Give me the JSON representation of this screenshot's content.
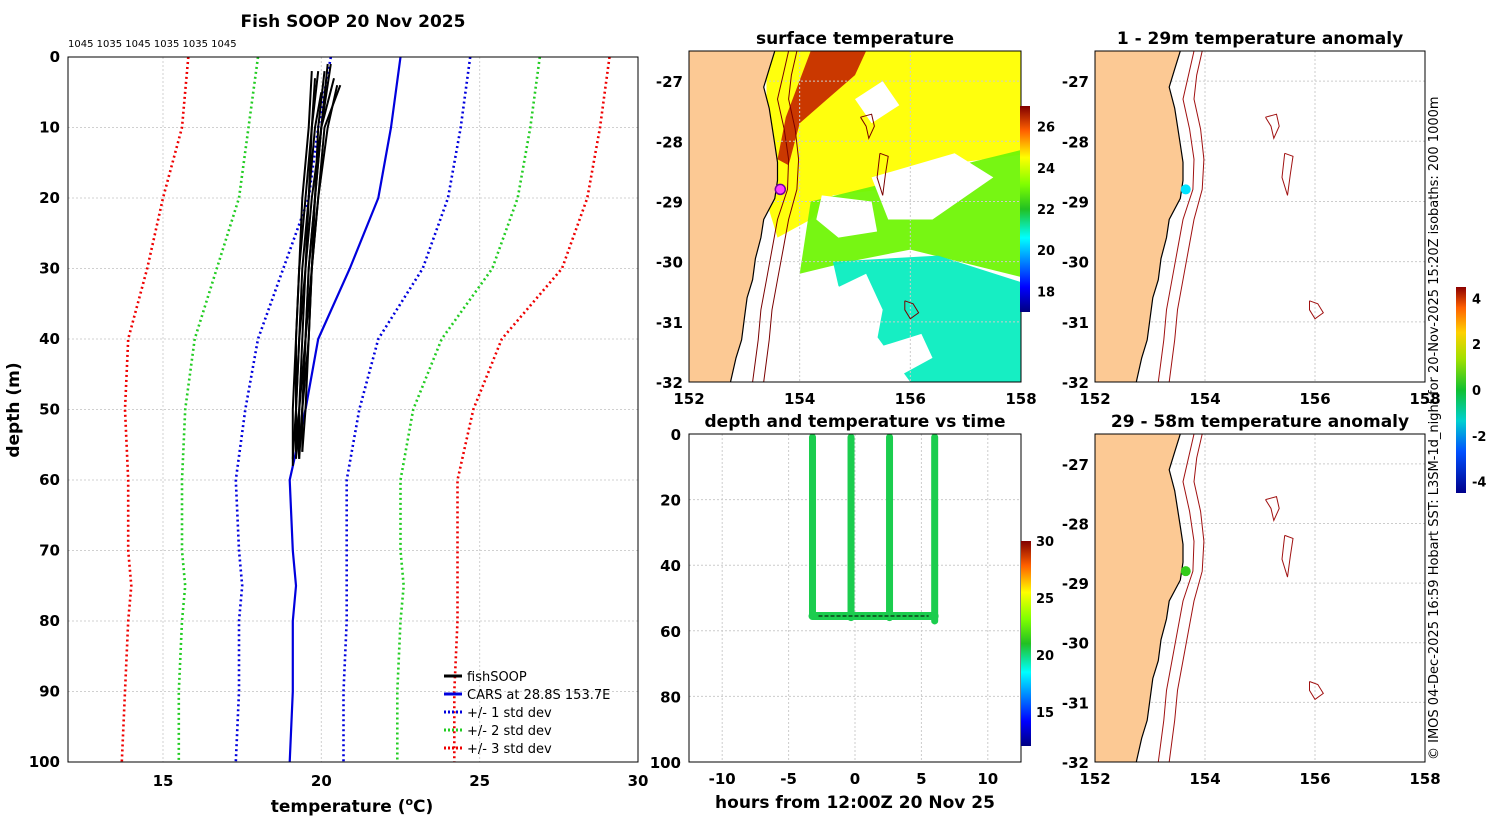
{
  "side_note": "© IMOS 04-Dec-2025 16:59 Hobart SST: L3SM-1d_night for 20-Nov-2025 15:20Z isobaths: 200  1000m",
  "chart_data": [
    {
      "id": "profile",
      "type": "line",
      "title": "Fish SOOP 20 Nov 2025",
      "xlabel_pre": "temperature (",
      "xlabel_sup": "o",
      "xlabel_post": "C)",
      "ylabel": "depth (m)",
      "xlim": [
        12,
        30
      ],
      "ylim": [
        0,
        100
      ],
      "xticks": [
        15,
        20,
        25,
        30
      ],
      "yticks": [
        0,
        10,
        20,
        30,
        40,
        50,
        60,
        70,
        80,
        90,
        100
      ],
      "grid": true,
      "top_labels": "1045 1035 1045 1035 1035 1045",
      "legend_position": "bottom-right",
      "legend": [
        {
          "label": "fishSOOP",
          "color": "#000000",
          "style": "solid"
        },
        {
          "label": "CARS at 28.8S 153.7E",
          "color": "#0000dd",
          "style": "solid"
        },
        {
          "label": "+/- 1 std dev",
          "color": "#0000dd",
          "style": "dotted"
        },
        {
          "label": "+/- 2 std dev",
          "color": "#22cc22",
          "style": "dotted"
        },
        {
          "label": "+/- 3 std dev",
          "color": "#ee0000",
          "style": "dotted"
        }
      ],
      "series": [
        {
          "name": "CARS at 28.8S 153.7E",
          "color": "#0000dd",
          "style": "solid",
          "temp": [
            22.5,
            22.2,
            21.8,
            20.9,
            19.9,
            19.5,
            19.0,
            19.1,
            19.2,
            19.1,
            19.1,
            19.0
          ],
          "depth": [
            0,
            10,
            20,
            30,
            40,
            50,
            60,
            70,
            75,
            80,
            90,
            100
          ]
        },
        {
          "name": "+1 std dev",
          "color": "#0000dd",
          "style": "dotted",
          "temp": [
            24.7,
            24.4,
            24.0,
            23.2,
            21.8,
            21.2,
            20.8,
            20.8,
            20.8,
            20.8,
            20.7,
            20.7
          ],
          "depth": [
            0,
            10,
            20,
            30,
            40,
            50,
            60,
            70,
            75,
            80,
            90,
            100
          ]
        },
        {
          "name": "-1 std dev",
          "color": "#0000dd",
          "style": "dotted",
          "temp": [
            20.3,
            19.9,
            19.6,
            18.8,
            18.0,
            17.6,
            17.3,
            17.4,
            17.5,
            17.4,
            17.4,
            17.3
          ],
          "depth": [
            0,
            10,
            20,
            30,
            40,
            50,
            60,
            70,
            75,
            80,
            90,
            100
          ]
        },
        {
          "name": "+2 std dev",
          "color": "#22cc22",
          "style": "dotted",
          "temp": [
            26.9,
            26.6,
            26.2,
            25.4,
            23.8,
            22.9,
            22.5,
            22.5,
            22.6,
            22.5,
            22.4,
            22.4
          ],
          "depth": [
            0,
            10,
            20,
            30,
            40,
            50,
            60,
            70,
            75,
            80,
            90,
            100
          ]
        },
        {
          "name": "-2 std dev",
          "color": "#22cc22",
          "style": "dotted",
          "temp": [
            18.0,
            17.7,
            17.4,
            16.7,
            16.0,
            15.7,
            15.6,
            15.6,
            15.7,
            15.6,
            15.5,
            15.5
          ],
          "depth": [
            0,
            10,
            20,
            30,
            40,
            50,
            60,
            70,
            75,
            80,
            90,
            100
          ]
        },
        {
          "name": "+3 std dev",
          "color": "#ee0000",
          "style": "dotted",
          "temp": [
            29.1,
            28.8,
            28.4,
            27.6,
            25.7,
            24.8,
            24.3,
            24.3,
            24.3,
            24.3,
            24.2,
            24.2
          ],
          "depth": [
            0,
            10,
            20,
            30,
            40,
            50,
            60,
            70,
            75,
            80,
            90,
            100
          ]
        },
        {
          "name": "-3 std dev",
          "color": "#ee0000",
          "style": "dotted",
          "temp": [
            15.8,
            15.6,
            15.0,
            14.5,
            13.9,
            13.8,
            13.9,
            13.9,
            14.0,
            13.9,
            13.8,
            13.7
          ],
          "depth": [
            0,
            10,
            20,
            30,
            40,
            50,
            60,
            70,
            75,
            80,
            90,
            100
          ]
        }
      ],
      "fishsoop_profiles": [
        {
          "temp": [
            20.1,
            19.9,
            19.8,
            19.6,
            19.5,
            19.4,
            19.3
          ],
          "depth": [
            2,
            10,
            20,
            30,
            40,
            50,
            57
          ]
        },
        {
          "temp": [
            20.3,
            20.0,
            19.8,
            19.7,
            19.6,
            19.5,
            19.4
          ],
          "depth": [
            1,
            10,
            20,
            30,
            40,
            50,
            56
          ]
        },
        {
          "temp": [
            19.8,
            19.7,
            19.6,
            19.4,
            19.3,
            19.2,
            19.1
          ],
          "depth": [
            3,
            10,
            20,
            30,
            40,
            50,
            57
          ]
        },
        {
          "temp": [
            20.6,
            20.1,
            19.9,
            19.7,
            19.5,
            19.3,
            19.3
          ],
          "depth": [
            4,
            10,
            20,
            30,
            40,
            50,
            56
          ]
        },
        {
          "temp": [
            19.7,
            19.6,
            19.4,
            19.3,
            19.2,
            19.2,
            19.3
          ],
          "depth": [
            2,
            10,
            20,
            30,
            40,
            50,
            57
          ]
        },
        {
          "temp": [
            20.2,
            20.0,
            19.7,
            19.5,
            19.3,
            19.2,
            19.2
          ],
          "depth": [
            1,
            10,
            20,
            30,
            40,
            50,
            56
          ]
        },
        {
          "temp": [
            20.0,
            19.8,
            19.6,
            19.5,
            19.4,
            19.3,
            19.2
          ],
          "depth": [
            5,
            10,
            20,
            30,
            40,
            50,
            57
          ]
        },
        {
          "temp": [
            20.4,
            20.0,
            19.8,
            19.6,
            19.5,
            19.4,
            19.3
          ],
          "depth": [
            3,
            10,
            20,
            30,
            40,
            50,
            56
          ]
        },
        {
          "temp": [
            19.9,
            19.7,
            19.5,
            19.3,
            19.2,
            19.1,
            19.1
          ],
          "depth": [
            2,
            10,
            20,
            30,
            40,
            50,
            58
          ]
        },
        {
          "temp": [
            20.5,
            20.2,
            19.9,
            19.7,
            19.6,
            19.4,
            19.4
          ],
          "depth": [
            4,
            10,
            20,
            30,
            40,
            50,
            56
          ]
        }
      ]
    },
    {
      "id": "sst",
      "type": "heatmap",
      "title": "surface temperature",
      "xlim": [
        152,
        158
      ],
      "ylim": [
        -32,
        -26.5
      ],
      "xticks": [
        152,
        154,
        156,
        158
      ],
      "yticks": [
        -27,
        -28,
        -29,
        -30,
        -31,
        -32
      ],
      "grid": true,
      "colorbar_ticks": [
        18,
        20,
        22,
        24,
        26
      ],
      "colorbar_range": [
        17,
        27
      ],
      "marker": {
        "lon": 153.65,
        "lat": -28.8
      }
    },
    {
      "id": "anom_upper",
      "type": "scatter",
      "title": "1 - 29m temperature anomaly",
      "xlim": [
        152,
        158
      ],
      "ylim": [
        -32,
        -26.5
      ],
      "xticks": [
        152,
        154,
        156,
        158
      ],
      "yticks": [
        -27,
        -28,
        -29,
        -30,
        -31,
        -32
      ],
      "grid": true,
      "point": {
        "lon": 153.65,
        "lat": -28.8,
        "anomaly": -1.5
      }
    },
    {
      "id": "anom_lower",
      "type": "scatter",
      "title": "29 - 58m temperature anomaly",
      "xlim": [
        152,
        158
      ],
      "ylim": [
        -32,
        -26.5
      ],
      "xticks": [
        152,
        154,
        156,
        158
      ],
      "yticks": [
        -27,
        -28,
        -29,
        -30,
        -31,
        -32
      ],
      "grid": true,
      "point": {
        "lon": 153.65,
        "lat": -28.8,
        "anomaly": 0.2
      }
    },
    {
      "id": "anom_colorbar",
      "type": "colorbar",
      "ticks": [
        -4,
        -2,
        0,
        2,
        4
      ],
      "range": [
        -4.5,
        4.5
      ]
    },
    {
      "id": "depth_time",
      "type": "scatter",
      "title": "depth and temperature vs time",
      "xlabel": "hours from 12:00Z 20 Nov 25",
      "xlim": [
        -12.5,
        12.5
      ],
      "ylim": [
        0,
        100
      ],
      "xticks": [
        -10,
        -5,
        0,
        5,
        10
      ],
      "yticks": [
        0,
        20,
        40,
        60,
        80,
        100
      ],
      "grid": true,
      "colorbar_ticks": [
        15,
        20,
        25,
        30
      ],
      "colorbar_range": [
        12,
        30
      ],
      "casts": [
        {
          "hour": -3.2,
          "bottom": 55
        },
        {
          "hour": -0.3,
          "bottom": 56
        },
        {
          "hour": 2.6,
          "bottom": 56
        },
        {
          "hour": 6.0,
          "bottom": 57
        }
      ],
      "cast_temp": 20.5
    }
  ]
}
